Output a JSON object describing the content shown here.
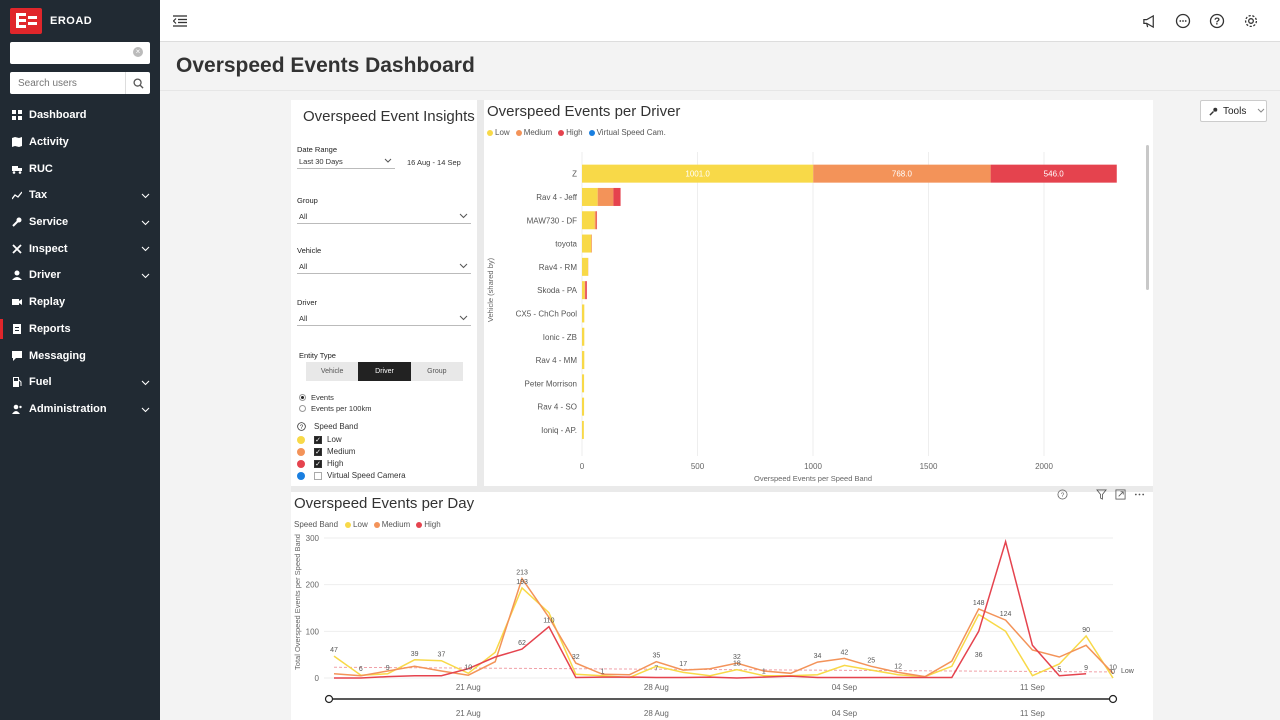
{
  "app": {
    "brand": "EROAD"
  },
  "sidebar": {
    "search_placeholder": "Search users",
    "items": [
      {
        "label": "Dashboard",
        "icon": "dashboard-icon",
        "chevron": false,
        "active": false
      },
      {
        "label": "Activity",
        "icon": "map-icon",
        "chevron": false,
        "active": false
      },
      {
        "label": "RUC",
        "icon": "truck-icon",
        "chevron": false,
        "active": false
      },
      {
        "label": "Tax",
        "icon": "chart-icon",
        "chevron": true,
        "active": false
      },
      {
        "label": "Service",
        "icon": "wrench-icon",
        "chevron": true,
        "active": false
      },
      {
        "label": "Inspect",
        "icon": "tools-icon",
        "chevron": true,
        "active": false
      },
      {
        "label": "Driver",
        "icon": "user-icon",
        "chevron": true,
        "active": false
      },
      {
        "label": "Replay",
        "icon": "video-icon",
        "chevron": false,
        "active": false
      },
      {
        "label": "Reports",
        "icon": "report-icon",
        "chevron": false,
        "active": true
      },
      {
        "label": "Messaging",
        "icon": "message-icon",
        "chevron": false,
        "active": false
      },
      {
        "label": "Fuel",
        "icon": "fuel-icon",
        "chevron": true,
        "active": false
      },
      {
        "label": "Administration",
        "icon": "admin-icon",
        "chevron": true,
        "active": false
      }
    ]
  },
  "header": {
    "page_title": "Overspeed Events Dashboard",
    "tools_label": "Tools"
  },
  "filters": {
    "title": "Overspeed Event Insights",
    "date_range_label": "Date Range",
    "date_range_value": "Last 30 Days",
    "date_range_text": "16 Aug - 14 Sep",
    "group_label": "Group",
    "group_value": "All",
    "vehicle_label": "Vehicle",
    "vehicle_value": "All",
    "driver_label": "Driver",
    "driver_value": "All",
    "entity_type_label": "Entity Type",
    "entity_options": [
      "Vehicle",
      "Driver",
      "Group"
    ],
    "entity_selected": "Driver",
    "measure_options": [
      "Events",
      "Events per 100km"
    ],
    "speed_band_label": "Speed Band",
    "speed_bands": [
      {
        "label": "Low",
        "color": "#f8d948",
        "checked": true
      },
      {
        "label": "Medium",
        "color": "#f39359",
        "checked": true
      },
      {
        "label": "High",
        "color": "#e5434e",
        "checked": true
      },
      {
        "label": "Virtual Speed Camera",
        "color": "#1a7fe0",
        "checked": false
      }
    ]
  },
  "colors": {
    "low": "#f8d948",
    "medium": "#f39359",
    "high": "#e5434e",
    "vsc": "#1a7fe0",
    "accent": "#e0262b"
  },
  "bar_chart": {
    "title": "Overspeed Events per Driver",
    "legend": [
      "Low",
      "Medium",
      "High",
      "Virtual Speed Cam."
    ],
    "ylabel": "Vehicle (shared by)",
    "xlabel": "Overspeed Events per Speed Band",
    "x_ticks": [
      "0",
      "500",
      "1000",
      "1500",
      "2000"
    ]
  },
  "line_chart": {
    "title": "Overspeed Events per Day",
    "legend_label": "Speed Band",
    "legend": [
      "Low",
      "Medium",
      "High"
    ],
    "ylabel": "Total Overspeed Events per Speed Band",
    "y_ticks": [
      "0",
      "100",
      "200",
      "300"
    ],
    "x_ticks": [
      "21 Aug",
      "28 Aug",
      "04 Sep",
      "11 Sep"
    ],
    "ref_label": "Low"
  },
  "chart_data": [
    {
      "type": "bar",
      "orientation": "horizontal",
      "stacked": true,
      "title": "Overspeed Events per Driver",
      "ylabel": "Vehicle (shared by)",
      "xlabel": "Overspeed Events per Speed Band",
      "xlim": [
        0,
        2300
      ],
      "categories": [
        "Z",
        "Rav 4 - Jeff",
        "MAW730 - DF",
        "toyota",
        "Rav4 - RM",
        "Skoda - PA",
        "CX5 - ChCh Pool",
        "Ionic - ZB",
        "Rav 4 - MM",
        "Peter Morrison",
        "Rav 4 - SO",
        "Ioniq - AP."
      ],
      "series": [
        {
          "name": "Low",
          "values": [
            1001.0,
            68,
            55,
            40,
            26,
            12,
            10,
            10,
            10,
            9,
            9,
            8
          ]
        },
        {
          "name": "Medium",
          "values": [
            768.0,
            68,
            7,
            3,
            1,
            2,
            0,
            0,
            0,
            0,
            0,
            0
          ]
        },
        {
          "name": "High",
          "values": [
            546.0,
            31,
            3,
            0,
            0,
            7,
            0,
            0,
            0,
            0,
            0,
            0
          ]
        },
        {
          "name": "Virtual Speed Cam.",
          "values": [
            0,
            0,
            0,
            0,
            0,
            0,
            0,
            0,
            0,
            0,
            0,
            0
          ]
        }
      ],
      "data_labels": [
        "1001.0",
        "768.0",
        "546.0"
      ]
    },
    {
      "type": "line",
      "title": "Overspeed Events per Day",
      "ylabel": "Total Overspeed Events per Speed Band",
      "ylim": [
        0,
        300
      ],
      "x": [
        "16 Aug",
        "17 Aug",
        "18 Aug",
        "19 Aug",
        "20 Aug",
        "21 Aug",
        "22 Aug",
        "23 Aug",
        "24 Aug",
        "25 Aug",
        "26 Aug",
        "27 Aug",
        "28 Aug",
        "29 Aug",
        "30 Aug",
        "31 Aug",
        "01 Sep",
        "02 Sep",
        "03 Sep",
        "04 Sep",
        "05 Sep",
        "06 Sep",
        "07 Sep",
        "08 Sep",
        "09 Sep",
        "10 Sep",
        "11 Sep",
        "12 Sep",
        "13 Sep",
        "14 Sep"
      ],
      "series": [
        {
          "name": "Low",
          "values": [
            47,
            6,
            9,
            39,
            37,
            10,
            55,
            193,
            140,
            8,
            5,
            1,
            25,
            12,
            5,
            18,
            5,
            5,
            7,
            27,
            17,
            7,
            3,
            25,
            136,
            100,
            5,
            30,
            90,
            0
          ]
        },
        {
          "name": "Medium",
          "values": [
            9,
            5,
            15,
            25,
            15,
            6,
            35,
            213,
            130,
            32,
            8,
            7,
            35,
            17,
            20,
            32,
            15,
            10,
            34,
            42,
            25,
            12,
            3,
            36,
            148,
            124,
            60,
            45,
            70,
            10
          ]
        },
        {
          "name": "High",
          "values": [
            0,
            0,
            3,
            5,
            5,
            20,
            45,
            62,
            110,
            1,
            2,
            2,
            1,
            1,
            2,
            0,
            2,
            4,
            1,
            1,
            1,
            1,
            1,
            1,
            100,
            292,
            70,
            5,
            9,
            null
          ]
        }
      ],
      "reference_line": {
        "name": "Low",
        "value": 23
      }
    }
  ]
}
